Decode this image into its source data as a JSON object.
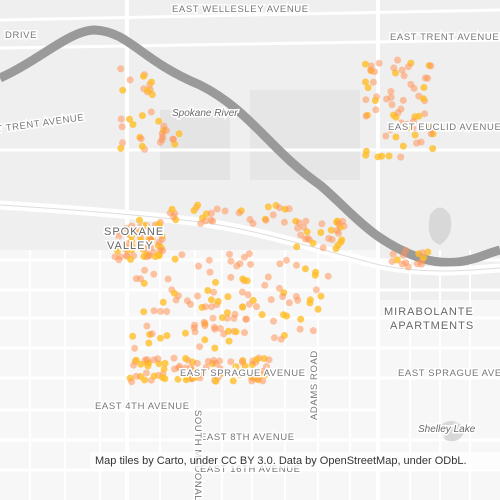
{
  "labels": {
    "wellesley": "EAST WELLESLEY AVENUE",
    "drive": "DRIVE",
    "east_trent": "EAST TRENT AVENUE",
    "trent": "T TRENT AVENUE",
    "river": "Spokane River",
    "euclid": "EAST EUCLID AVENUE",
    "spokane": "SPOKANE",
    "valley": "VALLEY",
    "mirabolante": "MIRABOLANTE",
    "apartments": "APARTMENTS",
    "sprague_mid": "EAST SPRAGUE AVENUE",
    "sprague_east": "EAST SPRAGUE AVENUE",
    "fourth": "EAST 4TH AVENUE",
    "eighth": "EAST 8TH AVENUE",
    "mcdonald": "SOUTH MCDONALD",
    "adams": "ADAMS ROAD",
    "shelley": "Shelley Lake",
    "sixteenth": "EAST 16TH AVENUE"
  },
  "attribution": "Map tiles by Carto, under CC BY 3.0. Data by OpenStreetMap, under ODbL."
}
